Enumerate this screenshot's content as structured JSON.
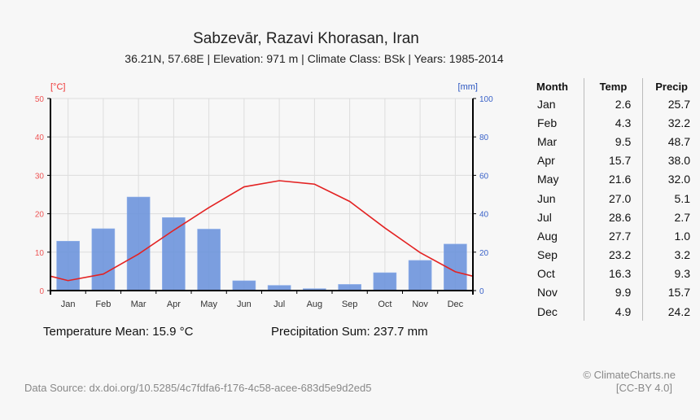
{
  "title": "Sabzevār, Razavi Khorasan, Iran",
  "subtitle": "36.21N, 57.68E | Elevation: 971 m | Climate Class: BSk | Years: 1985-2014",
  "summary": {
    "temp_mean": "Temperature Mean: 15.9 °C",
    "precip_sum": "Precipitation Sum: 237.7 mm"
  },
  "footer": {
    "source": "Data Source: dx.doi.org/10.5285/4c7fdfa6-f176-4c58-acee-683d5e9d2ed5",
    "copyright": "© ClimateCharts.ne",
    "license": "[CC-BY 4.0]"
  },
  "table": {
    "headers": [
      "Month",
      "Temp",
      "Precip"
    ],
    "rows": [
      [
        "Jan",
        "2.6",
        "25.7"
      ],
      [
        "Feb",
        "4.3",
        "32.2"
      ],
      [
        "Mar",
        "9.5",
        "48.7"
      ],
      [
        "Apr",
        "15.7",
        "38.0"
      ],
      [
        "May",
        "21.6",
        "32.0"
      ],
      [
        "Jun",
        "27.0",
        "5.1"
      ],
      [
        "Jul",
        "28.6",
        "2.7"
      ],
      [
        "Aug",
        "27.7",
        "1.0"
      ],
      [
        "Sep",
        "23.2",
        "3.2"
      ],
      [
        "Oct",
        "16.3",
        "9.3"
      ],
      [
        "Nov",
        "9.9",
        "15.7"
      ],
      [
        "Dec",
        "4.9",
        "24.2"
      ]
    ]
  },
  "chart_data": {
    "type": "bar+line",
    "categories": [
      "Jan",
      "Feb",
      "Mar",
      "Apr",
      "May",
      "Jun",
      "Jul",
      "Aug",
      "Sep",
      "Oct",
      "Nov",
      "Dec"
    ],
    "series": [
      {
        "name": "Temp",
        "axis": "left",
        "type": "line",
        "color": "#e32222",
        "values": [
          2.6,
          4.3,
          9.5,
          15.7,
          21.6,
          27.0,
          28.6,
          27.7,
          23.2,
          16.3,
          9.9,
          4.9
        ]
      },
      {
        "name": "Precip",
        "axis": "right",
        "type": "bar",
        "color": "#6d93db",
        "values": [
          25.7,
          32.2,
          48.7,
          38.0,
          32.0,
          5.1,
          2.7,
          1.0,
          3.2,
          9.3,
          15.7,
          24.2
        ]
      }
    ],
    "ylabel_left": "[°C]",
    "ylabel_right": "[mm]",
    "ylim_left": [
      0,
      50
    ],
    "ylim_right": [
      0,
      100
    ],
    "yticks_left": [
      0,
      10,
      20,
      30,
      40,
      50
    ],
    "yticks_right": [
      0,
      20,
      40,
      60,
      80,
      100
    ],
    "grid": true
  }
}
